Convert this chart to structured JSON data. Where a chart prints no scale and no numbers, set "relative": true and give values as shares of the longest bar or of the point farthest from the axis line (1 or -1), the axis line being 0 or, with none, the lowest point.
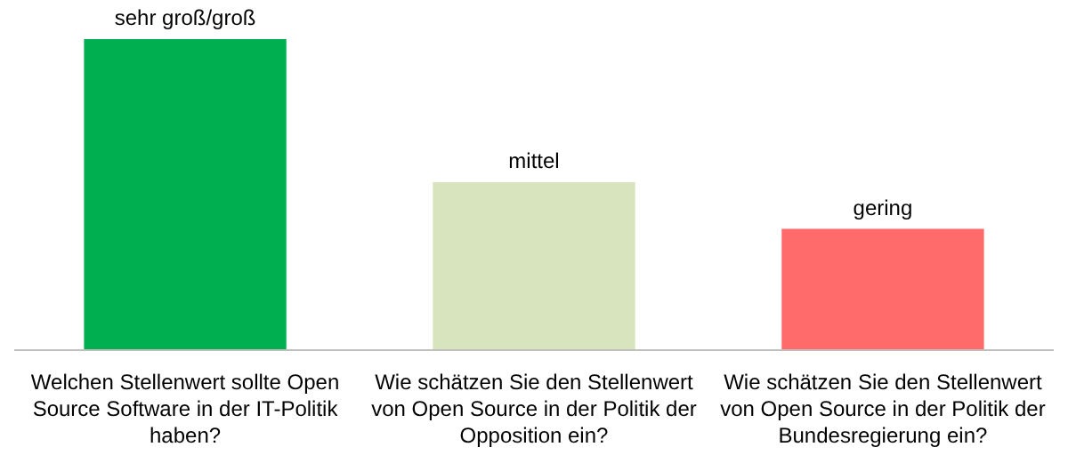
{
  "chart_data": {
    "type": "bar",
    "relative": true,
    "categories": [
      "Welchen Stellenwert sollte Open Source Software in der IT-Politik haben?",
      "Wie schätzen Sie den Stellenwert von Open Source in der Politik der Opposition ein?",
      "Wie schätzen Sie den Stellenwert von Open Source in der Politik der Bundesregierung ein?"
    ],
    "values": [
      1,
      0.54,
      0.39
    ],
    "colors": [
      "#00b050",
      "#d7e4bd",
      "#ff6b6b"
    ],
    "annotations": [
      {
        "text": "sehr groß/groß",
        "x": "Welchen Stellenwert sollte Open Source Software in der IT-Politik haben?",
        "y": 1
      },
      {
        "text": "mittel",
        "x": "Wie schätzen Sie den Stellenwert von Open Source in der Politik der Opposition ein?",
        "y": 0.54
      },
      {
        "text": "gering",
        "x": "Wie schätzen Sie den Stellenwert von Open Source in der Politik der Bundesregierung ein?",
        "y": 0.39
      }
    ]
  }
}
